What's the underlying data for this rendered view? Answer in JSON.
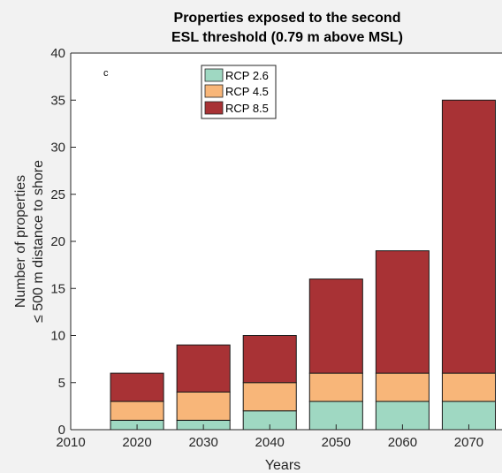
{
  "chart_data": {
    "type": "bar",
    "stacked": true,
    "title": "Properties exposed to the second",
    "subtitle": "ESL threshold (0.79 m above MSL)",
    "panel_label": "c",
    "xlabel": "Years",
    "ylabel_line1": "Number of properties",
    "ylabel_line2": "≤ 500 m distance to shore",
    "categories": [
      "2020",
      "2030",
      "2040",
      "2050",
      "2060",
      "2070"
    ],
    "x_values": [
      2020,
      2030,
      2040,
      2050,
      2060,
      2070
    ],
    "xlim": [
      2010,
      2075
    ],
    "xticks": [
      "2010",
      "2020",
      "2030",
      "2040",
      "2050",
      "2060",
      "2070"
    ],
    "ylim": [
      0,
      40
    ],
    "yticks": [
      "0",
      "5",
      "10",
      "15",
      "20",
      "25",
      "30",
      "35",
      "40"
    ],
    "legend_position": "top-left",
    "grid": false,
    "series": [
      {
        "name": "RCP 2.6",
        "color": "#9fd8c2",
        "values": [
          1,
          1,
          2,
          3,
          3,
          3
        ]
      },
      {
        "name": "RCP 4.5",
        "color": "#f8b679",
        "values": [
          2,
          3,
          3,
          3,
          3,
          3
        ]
      },
      {
        "name": "RCP 8.5",
        "color": "#a83235",
        "values": [
          3,
          5,
          5,
          10,
          13,
          29
        ]
      }
    ]
  }
}
